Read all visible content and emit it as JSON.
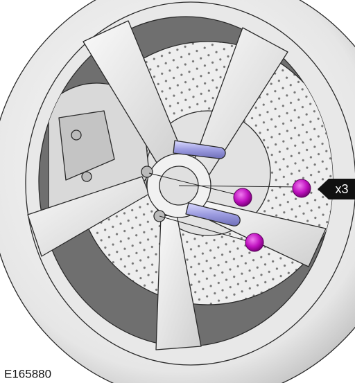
{
  "callout": {
    "label": "x3"
  },
  "figure_id": "E165880"
}
